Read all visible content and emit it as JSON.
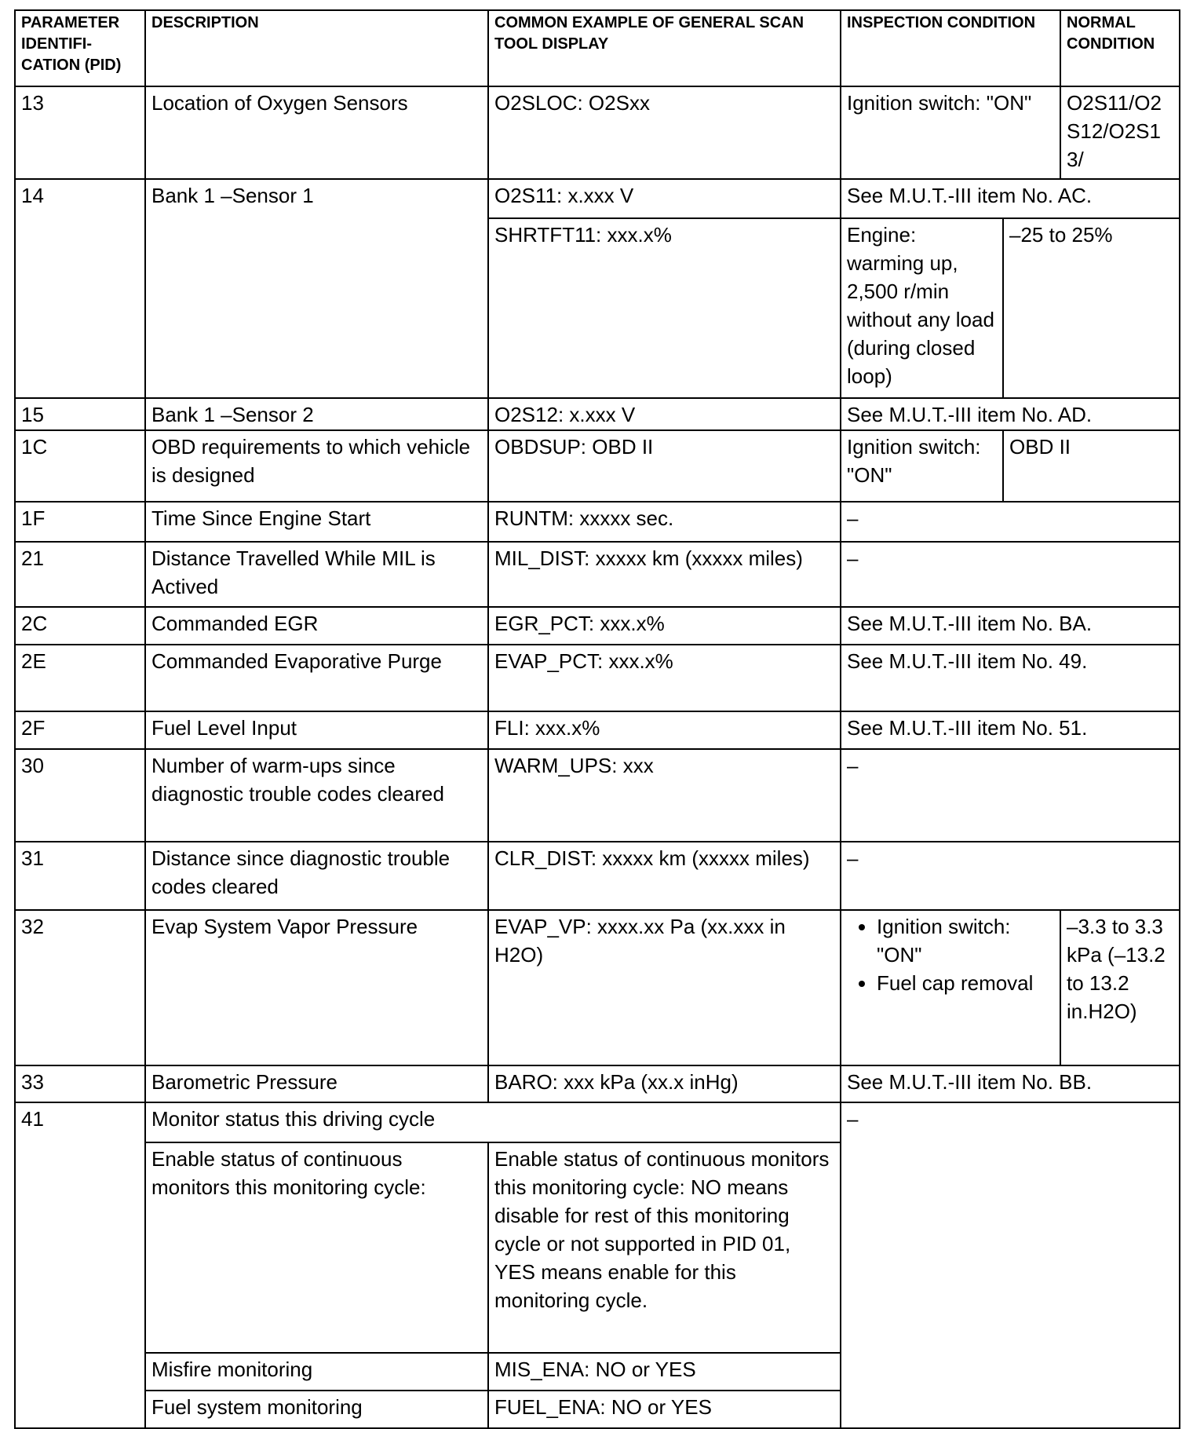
{
  "headers": {
    "pid": "PARAMETER IDENTIFI-CATION (PID)",
    "description": "DESCRIPTION",
    "display": "COMMON EXAMPLE OF GENERAL SCAN TOOL DISPLAY",
    "inspection": "INSPECTION CONDITION",
    "normal": "NORMAL CONDITION"
  },
  "rows": {
    "r13": {
      "pid": "13",
      "description": "Location of Oxygen Sensors",
      "display": "O2SLOC: O2Sxx",
      "inspection": "Ignition switch: \"ON\"",
      "normal": "O2S11/O2S12/O2S13/"
    },
    "r14": {
      "pid": "14",
      "description": "Bank 1 –Sensor 1",
      "display": "O2S11: x.xxx V",
      "condition": "See M.U.T.-III item No. AC.",
      "display2": "SHRTFT11: xxx.x%",
      "inspection2": "Engine: warming up, 2,500 r/min without any load (during closed loop)",
      "normal2": "–25 to 25%"
    },
    "r15": {
      "pid": "15",
      "description": "Bank 1 –Sensor 2",
      "display": "O2S12: x.xxx V",
      "condition": "See M.U.T.-III item No. AD."
    },
    "r1C": {
      "pid": "1C",
      "description": "OBD requirements to which vehicle is designed",
      "display": "OBDSUP: OBD II",
      "inspection": "Ignition switch: \"ON\"",
      "normal": "OBD II"
    },
    "r1F": {
      "pid": "1F",
      "description": "Time Since Engine Start",
      "display": "RUNTM: xxxxx sec.",
      "condition": "–"
    },
    "r21": {
      "pid": "21",
      "description": "Distance Travelled While MIL is Actived",
      "display": "MIL_DIST: xxxxx km (xxxxx miles)",
      "condition": "–"
    },
    "r2C": {
      "pid": "2C",
      "description": "Commanded EGR",
      "display": "EGR_PCT: xxx.x%",
      "condition": "See M.U.T.-III item No. BA."
    },
    "r2E": {
      "pid": "2E",
      "description": "Commanded Evaporative Purge",
      "display": "EVAP_PCT: xxx.x%",
      "condition": "See M.U.T.-III item No. 49."
    },
    "r2F": {
      "pid": "2F",
      "description": "Fuel Level Input",
      "display": "FLI: xxx.x%",
      "condition": "See M.U.T.-III item No. 51."
    },
    "r30": {
      "pid": "30",
      "description": "Number of warm-ups since diagnostic trouble codes cleared",
      "display": "WARM_UPS: xxx",
      "condition": "–"
    },
    "r31": {
      "pid": "31",
      "description": "Distance since diagnostic trouble codes cleared",
      "display": "CLR_DIST: xxxxx km (xxxxx miles)",
      "condition": "–"
    },
    "r32": {
      "pid": "32",
      "description": "Evap System Vapor Pressure",
      "display": "EVAP_VP: xxxx.xx Pa (xx.xxx in H2O)",
      "inspection_items": [
        "Ignition switch: \"ON\"",
        "Fuel cap removal"
      ],
      "normal": "–3.3 to 3.3 kPa (–13.2 to 13.2 in.H2O)"
    },
    "r33": {
      "pid": "33",
      "description": "Barometric Pressure",
      "display": "BARO: xxx kPa (xx.x inHg)",
      "condition": "See M.U.T.-III item No. BB."
    },
    "r41": {
      "pid": "41",
      "heading": "Monitor status this driving cycle",
      "condition": "–",
      "sub": [
        {
          "description": "Enable status of continuous monitors this monitoring cycle:",
          "display": "Enable status of continuous monitors this monitoring cycle: NO means disable for rest of this monitoring cycle or not supported in PID 01, YES means enable for this monitoring cycle."
        },
        {
          "description": "Misfire monitoring",
          "display": "MIS_ENA: NO or YES"
        },
        {
          "description": "Fuel system monitoring",
          "display": "FUEL_ENA: NO or YES"
        }
      ]
    }
  }
}
